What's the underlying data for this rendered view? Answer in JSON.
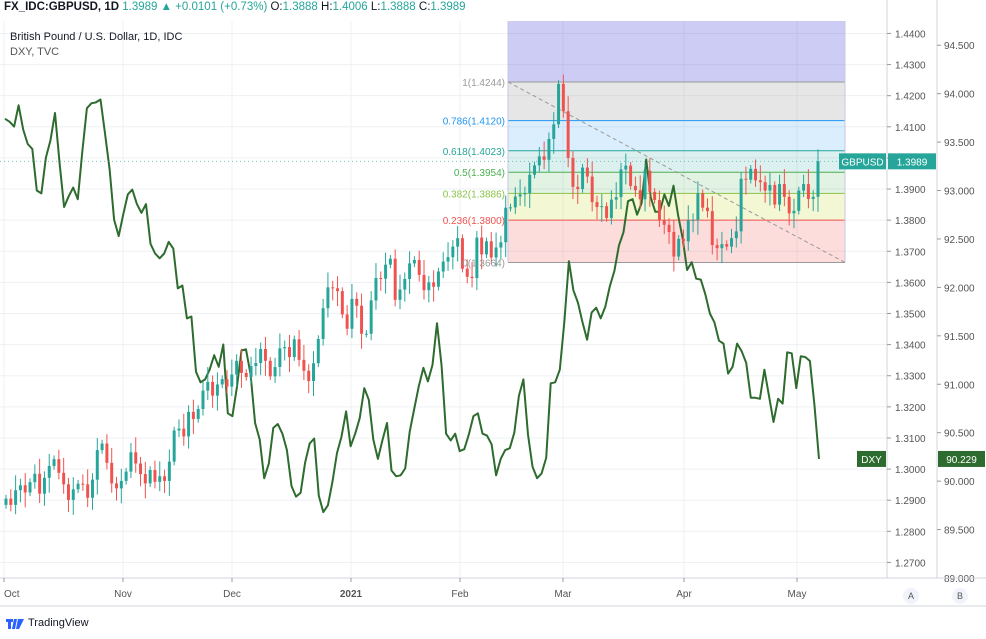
{
  "header": {
    "symbol": "FX_IDC:GBPUSD, 1D",
    "last": "1.3989",
    "change": "▲ +0.0101 (+0.73%)",
    "o_label": "O:",
    "o": "1.3888",
    "h_label": "H:",
    "h": "1.4006",
    "l_label": "L:",
    "l": "1.3888",
    "c_label": "C:",
    "c": "1.3989"
  },
  "legend": {
    "main": "British Pound / U.S. Dollar, 1D, IDC",
    "secondary": "DXY, TVC"
  },
  "brand": {
    "name": "TradingView"
  },
  "buttons": {
    "a": "A",
    "b": "B"
  },
  "colors": {
    "up": "#26a69a",
    "down": "#ef5350",
    "dxy_line": "#2e6b2e",
    "gbp_tag": "#26a69a",
    "dxy_tag": "#2e6b2e"
  },
  "chart_data": [
    {
      "type": "candlestick",
      "title": "British Pound / U.S. Dollar, 1D, IDC",
      "axis": "right-inner",
      "ylim": [
        1.265,
        1.444
      ],
      "y_ticks": [
        "1.4400",
        "1.4300",
        "1.4200",
        "1.4100",
        "1.4000",
        "1.3900",
        "1.3800",
        "1.3700",
        "1.3600",
        "1.3500",
        "1.3400",
        "1.3300",
        "1.3200",
        "1.3100",
        "1.3000",
        "1.2900",
        "1.2800",
        "1.2700"
      ],
      "x_labels": [
        "Oct",
        "Nov",
        "Dec",
        "2021",
        "Feb",
        "Mar",
        "Apr",
        "May"
      ],
      "last_value_tag": "GBPUSD",
      "last_value": "1.3989",
      "series": [
        {
          "name": "GBPUSD",
          "values": [
            1.2905,
            1.2885,
            1.2932,
            1.2948,
            1.2925,
            1.2958,
            1.2985,
            1.2921,
            1.2972,
            1.301,
            1.3032,
            1.2988,
            1.2951,
            1.2901,
            1.2935,
            1.2953,
            1.2951,
            1.2908,
            1.2966,
            1.3061,
            1.3082,
            1.302,
            1.2954,
            1.2938,
            1.2962,
            1.2992,
            1.3054,
            1.3018,
            1.2984,
            1.2954,
            1.2997,
            1.2959,
            1.2977,
            1.2962,
            1.3024,
            1.3124,
            1.313,
            1.3105,
            1.3184,
            1.3161,
            1.3193,
            1.3252,
            1.328,
            1.3236,
            1.3272,
            1.3289,
            1.3265,
            1.3304,
            1.3348,
            1.3309,
            1.3296,
            1.3331,
            1.3341,
            1.3386,
            1.3348,
            1.3298,
            1.3328,
            1.3388,
            1.3392,
            1.336,
            1.3417,
            1.3351,
            1.3316,
            1.3283,
            1.334,
            1.3418,
            1.3517,
            1.3584,
            1.3581,
            1.3572,
            1.3497,
            1.3451,
            1.3547,
            1.3525,
            1.3435,
            1.3435,
            1.3542,
            1.3614,
            1.3612,
            1.3657,
            1.3676,
            1.3544,
            1.3577,
            1.3611,
            1.3661,
            1.3672,
            1.3624,
            1.3575,
            1.36,
            1.3586,
            1.3635,
            1.3667,
            1.3681,
            1.3715,
            1.3742,
            1.3644,
            1.3618,
            1.3614,
            1.3744,
            1.369,
            1.3732,
            1.368,
            1.3712,
            1.3729,
            1.384,
            1.3841,
            1.3876,
            1.3883,
            1.3887,
            1.3946,
            1.3976,
            1.4005,
            1.3994,
            1.4061,
            1.4108,
            1.4238,
            1.415,
            1.4,
            1.3907,
            1.39,
            1.3969,
            1.394,
            1.3858,
            1.3842,
            1.3845,
            1.3807,
            1.3866,
            1.3874,
            1.3963,
            1.3975,
            1.391,
            1.3896,
            1.3867,
            1.3959,
            1.3891,
            1.3865,
            1.3799,
            1.3785,
            1.3762,
            1.3683,
            1.374,
            1.3732,
            1.38,
            1.3801,
            1.3886,
            1.384,
            1.3829,
            1.372,
            1.371,
            1.3723,
            1.3715,
            1.3742,
            1.3764,
            1.3933,
            1.393,
            1.3965,
            1.3928,
            1.3922,
            1.3895,
            1.3913,
            1.385,
            1.3916,
            1.3875,
            1.3822,
            1.383,
            1.3895,
            1.3916,
            1.3868,
            1.3875,
            1.3989
          ]
        }
      ]
    },
    {
      "type": "line",
      "title": "DXY, TVC",
      "axis": "right-outer",
      "ylim": [
        89.0,
        94.75
      ],
      "y_ticks": [
        "94.500",
        "94.000",
        "93.500",
        "93.000",
        "92.500",
        "92.000",
        "91.500",
        "91.000",
        "90.500",
        "90.000",
        "89.500",
        "89.000"
      ],
      "last_value_tag": "DXY",
      "last_value": "90.229",
      "series": [
        {
          "name": "DXY",
          "values": [
            93.74,
            93.71,
            93.66,
            93.88,
            93.63,
            93.48,
            93.43,
            93.0,
            92.97,
            93.34,
            93.52,
            93.8,
            93.28,
            92.83,
            92.94,
            93.03,
            92.91,
            93.4,
            93.85,
            93.9,
            93.91,
            93.94,
            93.59,
            93.22,
            92.7,
            92.53,
            92.75,
            92.96,
            93.01,
            92.86,
            92.77,
            92.86,
            92.45,
            92.35,
            92.3,
            92.35,
            92.47,
            92.4,
            91.99,
            92.02,
            91.68,
            91.7,
            91.13,
            91.02,
            91.05,
            91.15,
            91.3,
            91.18,
            91.41,
            90.7,
            90.67,
            90.97,
            91.35,
            91.36,
            91.1,
            90.6,
            90.43,
            90.03,
            90.18,
            90.55,
            90.59,
            90.49,
            90.32,
            89.95,
            89.84,
            89.88,
            90.19,
            90.39,
            90.44,
            89.85,
            89.68,
            89.75,
            89.99,
            90.29,
            90.46,
            90.72,
            90.36,
            90.49,
            90.65,
            90.96,
            90.84,
            90.43,
            90.23,
            90.42,
            90.6,
            90.11,
            90.05,
            90.06,
            90.13,
            90.51,
            90.75,
            90.98,
            91.17,
            91.03,
            91.2,
            91.63,
            91.19,
            90.49,
            90.42,
            90.49,
            90.31,
            90.33,
            90.48,
            90.67,
            90.7,
            90.49,
            90.47,
            90.38,
            90.06,
            90.23,
            90.32,
            90.34,
            90.5,
            90.88,
            91.05,
            90.48,
            90.15,
            90.03,
            90.08,
            90.24,
            91.01,
            91.02,
            91.15,
            91.64,
            92.27,
            91.97,
            91.84,
            91.64,
            91.46,
            91.74,
            91.79,
            91.68,
            91.8,
            92.01,
            92.17,
            92.43,
            92.57,
            92.89,
            92.91,
            92.75,
            92.87,
            93.32,
            92.93,
            92.78,
            92.78,
            92.96,
            92.84,
            93.05,
            92.75,
            92.51,
            92.18,
            92.26,
            92.09,
            92.08,
            91.93,
            91.73,
            91.64,
            91.45,
            91.42,
            91.11,
            91.18,
            91.42,
            91.34,
            91.22,
            90.86,
            90.86,
            90.85,
            91.15,
            90.88,
            90.61,
            90.85,
            90.8,
            91.33,
            91.32,
            90.96,
            91.29,
            91.28,
            91.24,
            90.78,
            90.23
          ]
        }
      ]
    },
    {
      "type": "fibonacci-retracement",
      "levels": [
        {
          "ratio": "1",
          "label": "1(1.4244)",
          "value": 1.4244,
          "line_color": "#999999",
          "fill": "rgba(140,140,140,0.22)"
        },
        {
          "ratio": "0.786",
          "label": "0.786(1.4120)",
          "value": 1.412,
          "line_color": "#2196f3",
          "fill": "rgba(33,150,243,0.16)"
        },
        {
          "ratio": "0.618",
          "label": "0.618(1.4023)",
          "value": 1.4023,
          "line_color": "#26a69a",
          "fill": "rgba(38,166,154,0.16)"
        },
        {
          "ratio": "0.5",
          "label": "0.5(1.3954)",
          "value": 1.3954,
          "line_color": "#4caf50",
          "fill": "rgba(76,175,80,0.16)"
        },
        {
          "ratio": "0.382",
          "label": "0.382(1.3886)",
          "value": 1.3886,
          "line_color": "#8bc34a",
          "fill": "rgba(205,220,57,0.22)"
        },
        {
          "ratio": "0.236",
          "label": "0.236(1.3800)",
          "value": 1.38,
          "line_color": "#ef5350",
          "fill": "rgba(239,83,80,0.20)"
        },
        {
          "ratio": "0",
          "label": "0(1.3664)",
          "value": 1.3664,
          "line_color": "#999999",
          "fill": ""
        }
      ],
      "top_fill_value": 1.444,
      "top_fill": "rgba(96,96,220,0.32)"
    }
  ]
}
